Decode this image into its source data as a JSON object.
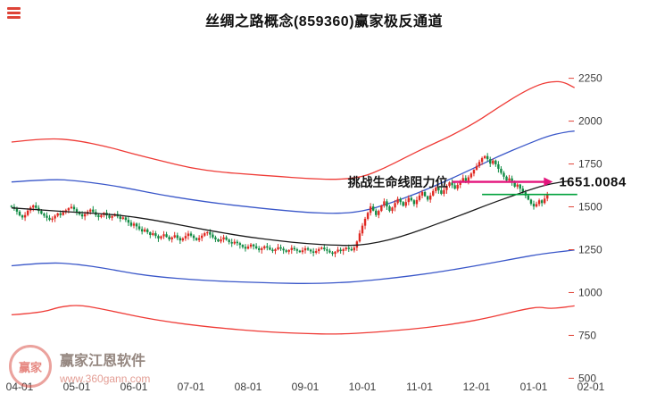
{
  "header": {
    "title": "丝绸之路概念(859360)赢家极反通道"
  },
  "watermark": {
    "seal_text": "赢家",
    "brand": "赢家江恩软件",
    "url": "www.360gann.com"
  },
  "chart_data": {
    "type": "candlestick",
    "title": "丝绸之路概念(859360)赢家极反通道",
    "grid": false,
    "legend_position": "none",
    "ylim": [
      450,
      2420
    ],
    "y_ticks": [
      500,
      750,
      1000,
      1250,
      1500,
      1750,
      2000,
      2250
    ],
    "x_tick_labels": [
      "04-01",
      "05-01",
      "06-01",
      "07-01",
      "08-01",
      "09-01",
      "10-01",
      "11-01",
      "12-01",
      "01-01",
      "02-01"
    ],
    "x_tick_days": [
      0,
      21,
      42,
      63,
      84,
      105,
      126,
      147,
      168,
      189,
      210
    ],
    "axis_color": "#3c3c3c",
    "tick_mark_color": "#e04438",
    "up_color": "#e02a23",
    "down_color": "#128c45",
    "candle_start_day": -3,
    "first_open": 1506,
    "closes": [
      1500,
      1488,
      1472,
      1450,
      1438,
      1452,
      1478,
      1496,
      1508,
      1494,
      1476,
      1460,
      1448,
      1436,
      1424,
      1432,
      1448,
      1462,
      1452,
      1468,
      1480,
      1492,
      1500,
      1486,
      1470,
      1456,
      1444,
      1458,
      1472,
      1484,
      1470,
      1452,
      1440,
      1452,
      1466,
      1450,
      1436,
      1446,
      1458,
      1444,
      1430,
      1438,
      1424,
      1408,
      1390,
      1402,
      1386,
      1370,
      1356,
      1368,
      1352,
      1336,
      1346,
      1330,
      1316,
      1328,
      1340,
      1324,
      1310,
      1322,
      1334,
      1318,
      1304,
      1316,
      1330,
      1344,
      1332,
      1318,
      1306,
      1318,
      1332,
      1346,
      1352,
      1338,
      1322,
      1310,
      1298,
      1310,
      1322,
      1308,
      1294,
      1286,
      1296,
      1288,
      1278,
      1266,
      1256,
      1268,
      1280,
      1270,
      1258,
      1248,
      1258,
      1270,
      1262,
      1250,
      1242,
      1252,
      1264,
      1256,
      1246,
      1238,
      1248,
      1260,
      1252,
      1244,
      1236,
      1246,
      1258,
      1250,
      1240,
      1232,
      1242,
      1254,
      1262,
      1252,
      1244,
      1234,
      1226,
      1238,
      1250,
      1242,
      1252,
      1262,
      1254,
      1246,
      1262,
      1298,
      1345,
      1390,
      1430,
      1465,
      1502,
      1478,
      1452,
      1476,
      1508,
      1532,
      1502,
      1476,
      1496,
      1522,
      1546,
      1528,
      1506,
      1528,
      1552,
      1538,
      1516,
      1540,
      1566,
      1586,
      1562,
      1542,
      1566,
      1592,
      1612,
      1596,
      1576,
      1598,
      1622,
      1642,
      1626,
      1606,
      1628,
      1650,
      1668,
      1652,
      1672,
      1694,
      1716,
      1738,
      1762,
      1784,
      1796,
      1778,
      1752,
      1770,
      1748,
      1722,
      1698,
      1676,
      1654,
      1666,
      1642,
      1618,
      1630,
      1606,
      1586,
      1566,
      1542,
      1518,
      1502,
      1516,
      1538,
      1522,
      1548,
      1572
    ],
    "bands": [
      {
        "name": "outer-upper",
        "color": "#ef3b36",
        "points": [
          [
            -3,
            1878
          ],
          [
            10,
            1902
          ],
          [
            21,
            1888
          ],
          [
            32,
            1852
          ],
          [
            42,
            1808
          ],
          [
            52,
            1768
          ],
          [
            63,
            1726
          ],
          [
            74,
            1702
          ],
          [
            84,
            1690
          ],
          [
            95,
            1678
          ],
          [
            105,
            1666
          ],
          [
            116,
            1658
          ],
          [
            126,
            1672
          ],
          [
            134,
            1725
          ],
          [
            142,
            1790
          ],
          [
            150,
            1852
          ],
          [
            158,
            1910
          ],
          [
            168,
            1995
          ],
          [
            176,
            2080
          ],
          [
            184,
            2160
          ],
          [
            191,
            2215
          ],
          [
            196,
            2232
          ],
          [
            200,
            2228
          ],
          [
            204,
            2195
          ]
        ]
      },
      {
        "name": "inner-upper",
        "color": "#3a57c9",
        "points": [
          [
            -3,
            1645
          ],
          [
            12,
            1662
          ],
          [
            21,
            1652
          ],
          [
            32,
            1630
          ],
          [
            42,
            1602
          ],
          [
            52,
            1570
          ],
          [
            63,
            1542
          ],
          [
            74,
            1518
          ],
          [
            84,
            1500
          ],
          [
            95,
            1482
          ],
          [
            105,
            1468
          ],
          [
            116,
            1460
          ],
          [
            126,
            1472
          ],
          [
            136,
            1520
          ],
          [
            146,
            1578
          ],
          [
            156,
            1645
          ],
          [
            166,
            1718
          ],
          [
            176,
            1795
          ],
          [
            186,
            1862
          ],
          [
            194,
            1912
          ],
          [
            200,
            1935
          ],
          [
            204,
            1942
          ]
        ]
      },
      {
        "name": "mid-life-line",
        "color": "#1a1a1a",
        "points": [
          [
            -3,
            1494
          ],
          [
            10,
            1480
          ],
          [
            21,
            1468
          ],
          [
            32,
            1458
          ],
          [
            42,
            1442
          ],
          [
            52,
            1415
          ],
          [
            63,
            1382
          ],
          [
            74,
            1350
          ],
          [
            84,
            1324
          ],
          [
            95,
            1302
          ],
          [
            105,
            1286
          ],
          [
            116,
            1276
          ],
          [
            124,
            1274
          ],
          [
            132,
            1292
          ],
          [
            140,
            1325
          ],
          [
            148,
            1368
          ],
          [
            156,
            1415
          ],
          [
            164,
            1462
          ],
          [
            172,
            1512
          ],
          [
            180,
            1558
          ],
          [
            188,
            1602
          ],
          [
            195,
            1635
          ],
          [
            202,
            1651
          ]
        ]
      },
      {
        "name": "inner-lower",
        "color": "#3a57c9",
        "points": [
          [
            -3,
            1156
          ],
          [
            10,
            1176
          ],
          [
            21,
            1166
          ],
          [
            32,
            1140
          ],
          [
            42,
            1110
          ],
          [
            52,
            1090
          ],
          [
            63,
            1076
          ],
          [
            74,
            1066
          ],
          [
            84,
            1060
          ],
          [
            95,
            1055
          ],
          [
            105,
            1052
          ],
          [
            116,
            1056
          ],
          [
            126,
            1066
          ],
          [
            138,
            1086
          ],
          [
            150,
            1110
          ],
          [
            162,
            1140
          ],
          [
            172,
            1168
          ],
          [
            182,
            1198
          ],
          [
            192,
            1226
          ],
          [
            204,
            1248
          ]
        ]
      },
      {
        "name": "outer-lower",
        "color": "#ef3b36",
        "points": [
          [
            -3,
            870
          ],
          [
            8,
            882
          ],
          [
            15,
            918
          ],
          [
            22,
            928
          ],
          [
            30,
            905
          ],
          [
            38,
            878
          ],
          [
            46,
            852
          ],
          [
            56,
            826
          ],
          [
            66,
            806
          ],
          [
            76,
            790
          ],
          [
            86,
            776
          ],
          [
            96,
            766
          ],
          [
            106,
            760
          ],
          [
            116,
            757
          ],
          [
            126,
            764
          ],
          [
            138,
            778
          ],
          [
            150,
            796
          ],
          [
            162,
            822
          ],
          [
            172,
            852
          ],
          [
            180,
            882
          ],
          [
            186,
            904
          ],
          [
            191,
            916
          ],
          [
            195,
            906
          ],
          [
            199,
            912
          ],
          [
            204,
            922
          ]
        ]
      }
    ],
    "price_line": {
      "value": 1572,
      "from_day": 170,
      "to_day": 205,
      "color": "#00a13c"
    },
    "annotation": {
      "text": "挑战生命线阻力位",
      "price_label": "1651.0084",
      "value": 1646,
      "arrow_from_day": 159,
      "arrow_to_day": 196,
      "color": "#e3147c"
    }
  }
}
